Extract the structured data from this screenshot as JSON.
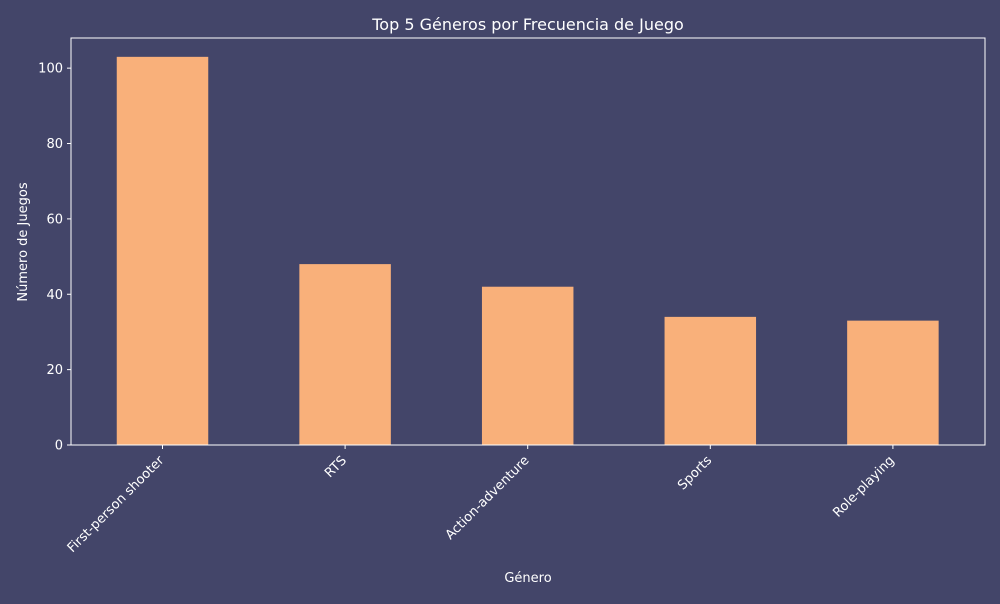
{
  "chart_data": {
    "type": "bar",
    "title": "Top 5 Géneros por Frecuencia de Juego",
    "xlabel": "Género",
    "ylabel": "Número de Juegos",
    "categories": [
      "First-person shooter",
      "RTS",
      "Action-adventure",
      "Sports",
      "Role-playing"
    ],
    "values": [
      103,
      48,
      42,
      34,
      33
    ],
    "ylim": [
      0,
      108
    ],
    "yticks": [
      0,
      20,
      40,
      60,
      80,
      100
    ],
    "grid": false,
    "legend": "none",
    "colors": {
      "background": "#434569",
      "bar": "#f9b07a",
      "axes": "#ffffff",
      "text": "#ffffff"
    }
  }
}
